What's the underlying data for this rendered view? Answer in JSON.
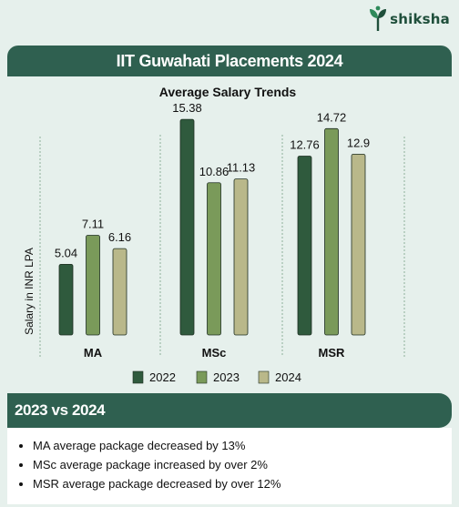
{
  "brand": {
    "name": "shiksha"
  },
  "banner": {
    "title": "IIT Guwahati Placements 2024"
  },
  "chart_data": {
    "type": "bar",
    "title": "Average Salary Trends",
    "ylabel": "Salary in INR LPA",
    "xlabel": "",
    "categories": [
      "MA",
      "MSc",
      "MSR"
    ],
    "series": [
      {
        "name": "2022",
        "values": [
          5.04,
          15.38,
          12.76
        ],
        "color": "#2f5a3d"
      },
      {
        "name": "2023",
        "values": [
          7.11,
          10.86,
          14.72
        ],
        "color": "#7a9a5a"
      },
      {
        "name": "2024",
        "values": [
          6.16,
          11.13,
          12.9
        ],
        "color": "#b9b88a"
      }
    ],
    "ylim": [
      0,
      16
    ],
    "grid": false,
    "legend_position": "bottom"
  },
  "section": {
    "title": "2023 vs 2024"
  },
  "highlights": [
    "MA average package decreased by 13%",
    "MSc average package increased by over 2%",
    "MSR average package decreased by over 12%"
  ],
  "colors": {
    "accent": "#2f6050",
    "background": "#e6f0ec"
  }
}
